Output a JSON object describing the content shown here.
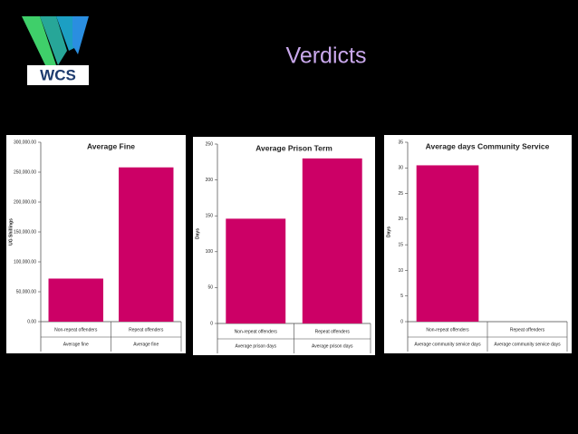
{
  "slide_title": "Verdicts",
  "logo_text": "WCS",
  "chart_data": [
    {
      "type": "bar",
      "title": "Average Fine",
      "y_label": "UG Shillings",
      "categories": [
        "Non-repeat offenders",
        "Repeat offenders"
      ],
      "category_groups": [
        "Average fine",
        "Average fine"
      ],
      "values": [
        72000,
        258000
      ],
      "color": "#cc0066",
      "ylim": [
        0,
        300000
      ],
      "yticks": [
        {
          "value": 0,
          "label": "0.00"
        },
        {
          "value": 50000,
          "label": "50,000.00"
        },
        {
          "value": 100000,
          "label": "100,000.00"
        },
        {
          "value": 150000,
          "label": "150,000.00"
        },
        {
          "value": 200000,
          "label": "200,000.00"
        },
        {
          "value": 250000,
          "label": "250,000.00"
        },
        {
          "value": 300000,
          "label": "300,000.00"
        }
      ]
    },
    {
      "type": "bar",
      "title": "Average Prison Term",
      "y_label": "Days",
      "categories": [
        "Non-repeat offenders",
        "Repeat offenders"
      ],
      "category_groups": [
        "Average prison days",
        "Average prison days"
      ],
      "values": [
        146,
        230
      ],
      "color": "#cc0066",
      "ylim": [
        0,
        250
      ],
      "yticks": [
        0,
        50,
        100,
        150,
        200,
        250
      ]
    },
    {
      "type": "bar",
      "title": "Average days Community Service",
      "y_label": "Days",
      "categories": [
        "Non-repeat offenders",
        "Repeat offenders"
      ],
      "category_groups": [
        "Average community service days",
        "Average community service days"
      ],
      "values": [
        30.5,
        0
      ],
      "color": "#cc0066",
      "ylim": [
        0,
        35
      ],
      "yticks": [
        0,
        5,
        10,
        15,
        20,
        25,
        30,
        35
      ]
    }
  ]
}
